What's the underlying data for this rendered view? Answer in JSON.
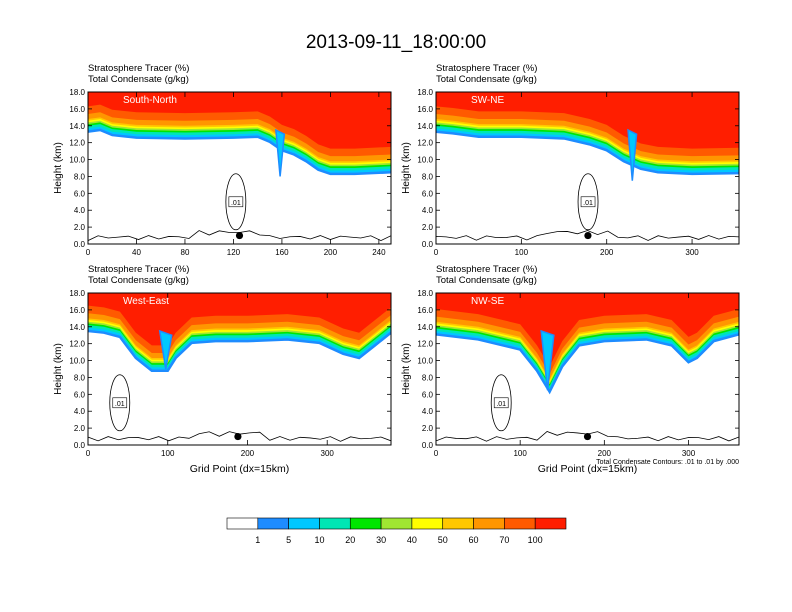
{
  "page": {
    "title": "2013-09-11_18:00:00"
  },
  "chart_data": {
    "type": "heatmap",
    "title": "2013-09-11_18:00:00",
    "panel_titles": [
      "Stratosphere Tracer   (%)",
      "Total Condensate   (g/kg)"
    ],
    "ylabel": "Height (km)",
    "xlabel": "Grid Point (dx=15km)",
    "yticks": [
      "0.0",
      "2.0",
      "4.0",
      "6.0",
      "8.0",
      "10.0",
      "12.0",
      "14.0",
      "16.0",
      "18.0"
    ],
    "ylim": [
      0,
      18
    ],
    "contour_note": "Total Condensate Contours: .01 to .01 by .000",
    "contour_label": ".01",
    "legend": {
      "levels": [
        "1",
        "5",
        "10",
        "20",
        "30",
        "40",
        "50",
        "60",
        "70",
        "100"
      ],
      "colors": [
        "#ffffff",
        "#1e8cff",
        "#00c8ff",
        "#00e6b4",
        "#00e600",
        "#a0e632",
        "#ffff00",
        "#ffc800",
        "#ff9600",
        "#ff5a00",
        "#ff1e00"
      ]
    },
    "panels": [
      {
        "label": "South-North",
        "xlim": [
          0,
          250
        ],
        "xticks": [
          "0",
          "40",
          "80",
          "120",
          "160",
          "200",
          "240"
        ],
        "tickvals": [
          0,
          40,
          80,
          120,
          160,
          200,
          240
        ],
        "tropopause": [
          [
            0,
            15
          ],
          [
            10,
            15.2
          ],
          [
            20,
            14.6
          ],
          [
            40,
            14.3
          ],
          [
            80,
            14.2
          ],
          [
            120,
            14.3
          ],
          [
            140,
            14.4
          ],
          [
            150,
            13.8
          ],
          [
            160,
            12.8
          ],
          [
            170,
            12.3
          ],
          [
            180,
            11.5
          ],
          [
            190,
            10.5
          ],
          [
            200,
            10
          ],
          [
            220,
            10
          ],
          [
            250,
            10.2
          ]
        ],
        "dip": [
          155,
          162,
          8
        ],
        "marker": 125
      },
      {
        "label": "SW-NE",
        "xlim": [
          0,
          355
        ],
        "xticks": [
          "0",
          "100",
          "200",
          "300"
        ],
        "tickvals": [
          0,
          100,
          200,
          300
        ],
        "tropopause": [
          [
            0,
            15
          ],
          [
            20,
            14.8
          ],
          [
            50,
            14.4
          ],
          [
            100,
            14.4
          ],
          [
            150,
            14.2
          ],
          [
            180,
            13.5
          ],
          [
            200,
            12.8
          ],
          [
            220,
            11.5
          ],
          [
            240,
            10.6
          ],
          [
            260,
            10.2
          ],
          [
            300,
            10
          ],
          [
            355,
            10.1
          ]
        ],
        "dip": [
          225,
          235,
          7.5
        ],
        "marker": 178
      },
      {
        "label": "West-East",
        "xlim": [
          0,
          380
        ],
        "xticks": [
          "0",
          "100",
          "200",
          "300"
        ],
        "tickvals": [
          0,
          100,
          200,
          300
        ],
        "tropopause": [
          [
            0,
            15.2
          ],
          [
            20,
            15
          ],
          [
            40,
            14.5
          ],
          [
            60,
            12
          ],
          [
            80,
            10.5
          ],
          [
            100,
            10.5
          ],
          [
            110,
            12
          ],
          [
            130,
            13.8
          ],
          [
            160,
            14
          ],
          [
            200,
            14
          ],
          [
            250,
            14.2
          ],
          [
            290,
            13.8
          ],
          [
            320,
            12.5
          ],
          [
            340,
            12
          ],
          [
            360,
            13.5
          ],
          [
            380,
            15
          ]
        ],
        "dip": [
          90,
          105,
          9
        ],
        "marker": 188
      },
      {
        "label": "NW-SE",
        "xlim": [
          0,
          360
        ],
        "xticks": [
          "0",
          "100",
          "200",
          "300"
        ],
        "tickvals": [
          0,
          100,
          200,
          300
        ],
        "tropopause": [
          [
            0,
            14.8
          ],
          [
            50,
            14.2
          ],
          [
            100,
            13
          ],
          [
            120,
            10.5
          ],
          [
            135,
            8
          ],
          [
            150,
            11
          ],
          [
            170,
            13.5
          ],
          [
            200,
            14
          ],
          [
            250,
            14.2
          ],
          [
            280,
            13.5
          ],
          [
            300,
            11.5
          ],
          [
            310,
            12
          ],
          [
            330,
            14
          ],
          [
            360,
            14.8
          ]
        ],
        "dip": [
          125,
          140,
          6.5
        ],
        "marker": 180
      }
    ]
  }
}
